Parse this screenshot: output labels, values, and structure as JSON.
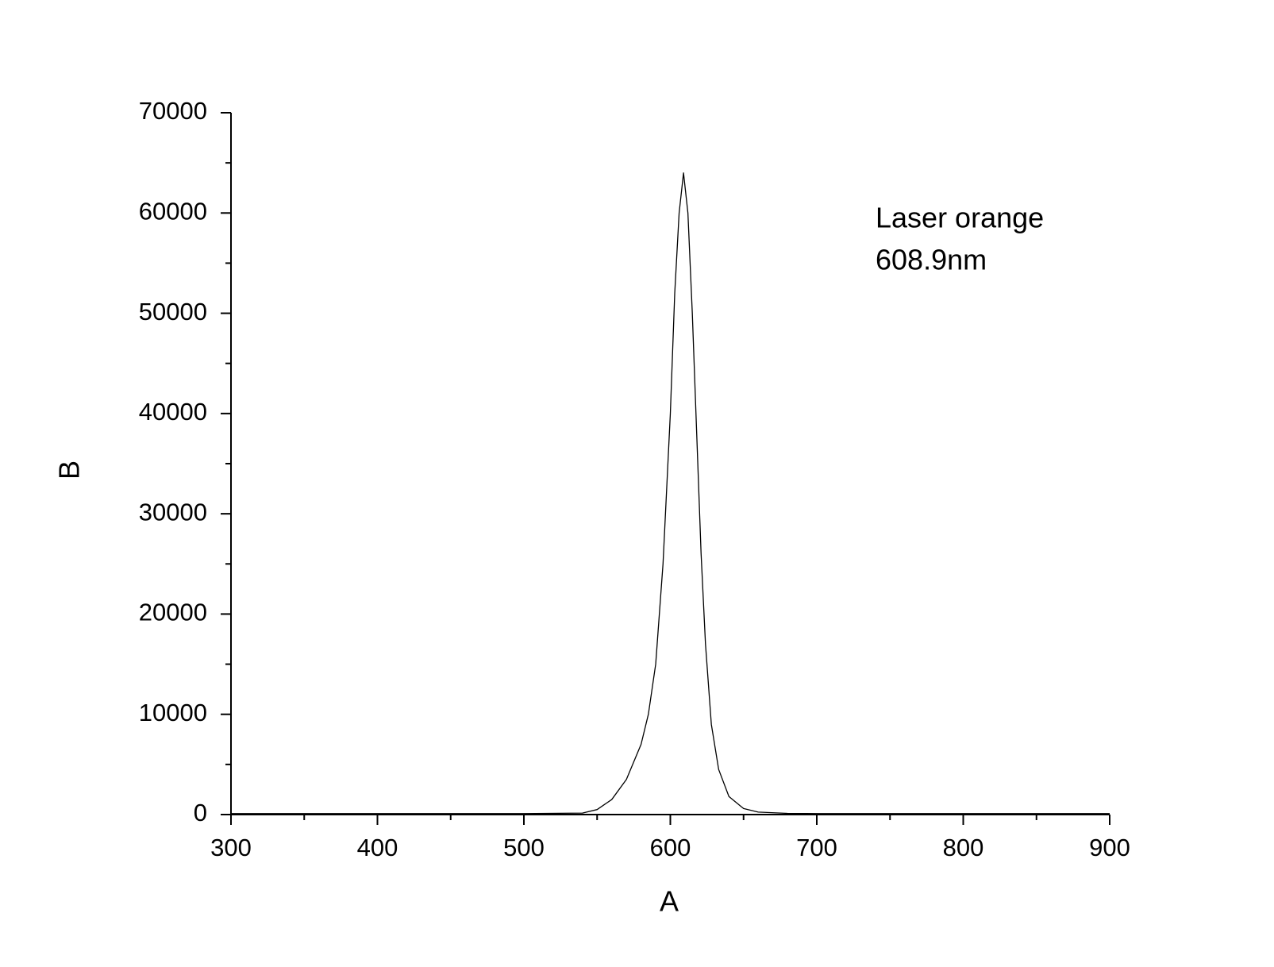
{
  "chart_data": {
    "type": "line",
    "x_label": "A",
    "y_label": "B",
    "annotations": [
      "Laser orange",
      "608.9nm"
    ],
    "x": [
      300,
      400,
      500,
      540,
      550,
      560,
      570,
      580,
      585,
      590,
      595,
      600,
      603,
      606,
      609,
      612,
      615,
      618,
      621,
      624,
      628,
      633,
      640,
      650,
      660,
      680,
      700,
      800,
      900
    ],
    "series": [
      {
        "name": "B",
        "color": "#000000",
        "values": [
          100,
          100,
          100,
          150,
          500,
          1500,
          3500,
          7000,
          10000,
          15000,
          25000,
          40000,
          52000,
          60000,
          64000,
          60000,
          50000,
          38000,
          26000,
          17000,
          9000,
          4500,
          1800,
          600,
          250,
          120,
          100,
          100,
          100
        ]
      }
    ],
    "xlim": [
      300,
      900
    ],
    "xticks": [
      300,
      400,
      500,
      600,
      700,
      800,
      900
    ],
    "xminor": [
      350,
      450,
      550,
      650,
      750,
      850
    ],
    "ylim": [
      0,
      70000
    ],
    "yticks": [
      0,
      10000,
      20000,
      30000,
      40000,
      50000,
      60000,
      70000
    ],
    "yminor": [
      5000,
      15000,
      25000,
      35000,
      45000,
      55000,
      65000
    ]
  }
}
